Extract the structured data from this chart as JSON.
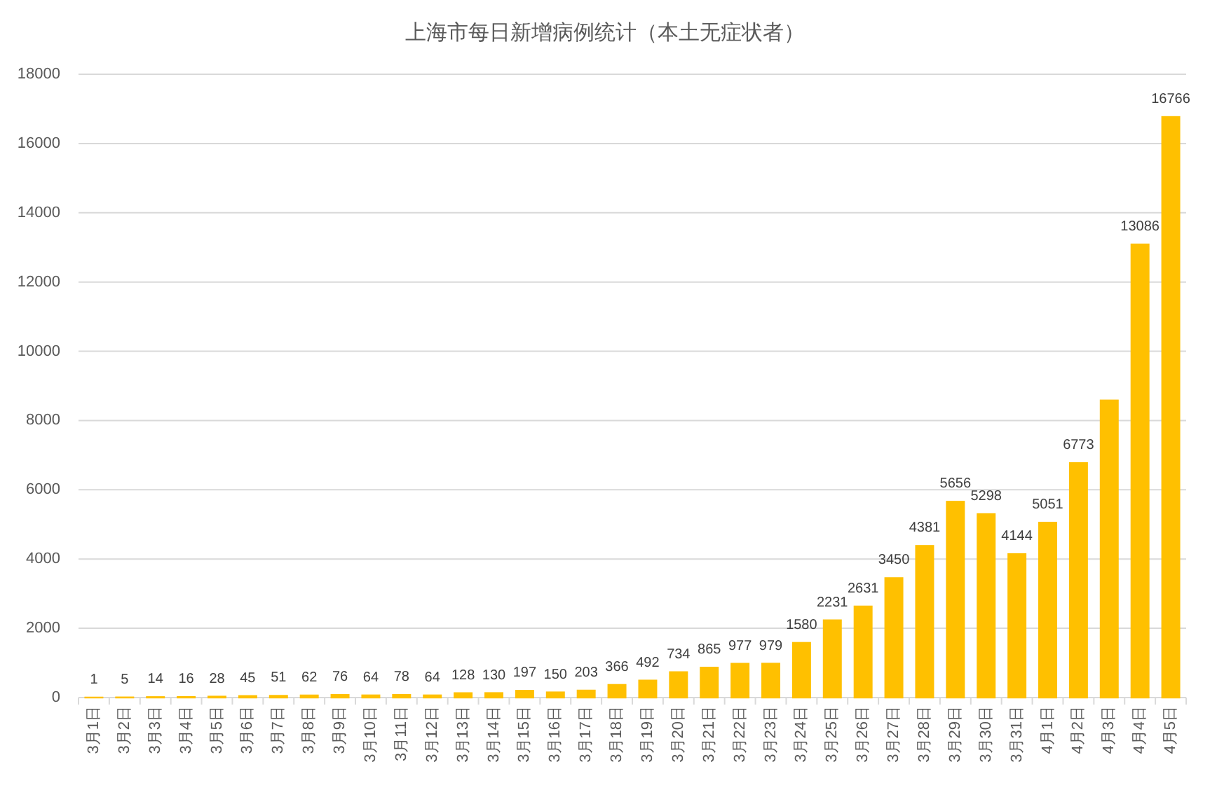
{
  "chart_data": {
    "type": "bar",
    "title": "上海市每日新增病例统计（本土无症状者）",
    "categories": [
      "3月1日",
      "3月2日",
      "3月3日",
      "3月4日",
      "3月5日",
      "3月6日",
      "3月7日",
      "3月8日",
      "3月9日",
      "3月10日",
      "3月11日",
      "3月12日",
      "3月13日",
      "3月14日",
      "3月15日",
      "3月16日",
      "3月17日",
      "3月18日",
      "3月19日",
      "3月20日",
      "3月21日",
      "3月22日",
      "3月23日",
      "3月24日",
      "3月25日",
      "3月26日",
      "3月27日",
      "3月28日",
      "3月29日",
      "3月30日",
      "3月31日",
      "4月1日",
      "4月2日",
      "4月3日",
      "4月4日",
      "4月5日"
    ],
    "values": [
      1,
      5,
      14,
      16,
      28,
      45,
      51,
      62,
      76,
      64,
      78,
      64,
      128,
      130,
      197,
      150,
      203,
      366,
      492,
      734,
      865,
      977,
      979,
      1580,
      2231,
      2631,
      3450,
      4381,
      5656,
      5298,
      4144,
      5051,
      6773,
      8580,
      13086,
      16766
    ],
    "value_labels": [
      "1",
      "5",
      "14",
      "16",
      "28",
      "45",
      "51",
      "62",
      "76",
      "64",
      "78",
      "64",
      "128",
      "130",
      "197",
      "150",
      "203",
      "366",
      "492",
      "734",
      "865",
      "977",
      "979",
      "1580",
      "2231",
      "2631",
      "3450",
      "4381",
      "5656",
      "5298",
      "4144",
      "5051",
      "6773",
      null,
      "13086",
      "16766"
    ],
    "color": "#ffc000",
    "ylim": [
      0,
      18000
    ],
    "yticks": [
      0,
      2000,
      4000,
      6000,
      8000,
      10000,
      12000,
      14000,
      16000,
      18000
    ],
    "grid": "y"
  }
}
